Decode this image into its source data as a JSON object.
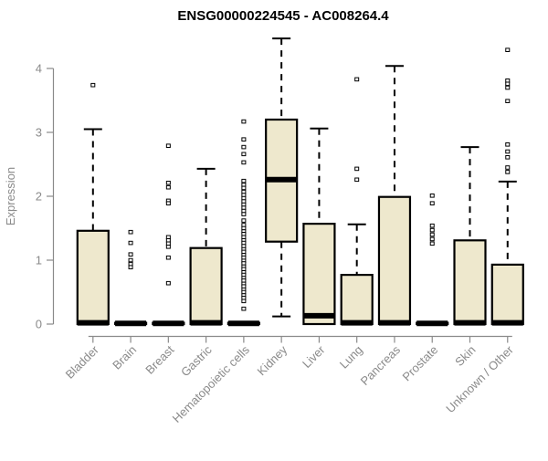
{
  "title": "ENSG00000224545 - AC008264.4",
  "colors": {
    "box_fill": "#EEE8CD",
    "box_border": "#000000",
    "axis": "#8a8a8a",
    "title_color": "#000000"
  },
  "chart_data": {
    "type": "boxplot",
    "title": "ENSG00000224545 - AC008264.4",
    "ylabel": "Expression",
    "xlabel": "",
    "ylim": [
      0,
      4.6
    ],
    "yticks": [
      0,
      1,
      2,
      3,
      4
    ],
    "grid": false,
    "legend": false,
    "categories": [
      "Bladder",
      "Brain",
      "Breast",
      "Gastric",
      "Hematopoietic cells",
      "Kidney",
      "Liver",
      "Lung",
      "Pancreas",
      "Prostate",
      "Skin",
      "Unknown / Other"
    ],
    "series": [
      {
        "name": "Bladder",
        "whisker_low": 0,
        "q1": 0,
        "median": 0.02,
        "q3": 1.46,
        "whisker_high": 3.05,
        "outliers": [
          3.74
        ]
      },
      {
        "name": "Brain",
        "whisker_low": 0,
        "q1": 0,
        "median": 0.01,
        "q3": 0.02,
        "whisker_high": 0.02,
        "outliers": [
          1.44,
          1.27,
          1.09,
          1.0,
          0.94,
          0.89
        ]
      },
      {
        "name": "Breast",
        "whisker_low": 0,
        "q1": 0,
        "median": 0.01,
        "q3": 0.02,
        "whisker_high": 0.02,
        "outliers": [
          2.79,
          2.21,
          2.14,
          1.93,
          1.89,
          1.36,
          1.31,
          1.26,
          1.21,
          1.04,
          0.64
        ]
      },
      {
        "name": "Gastric",
        "whisker_low": 0,
        "q1": 0,
        "median": 0.02,
        "q3": 1.19,
        "whisker_high": 2.43,
        "outliers": []
      },
      {
        "name": "Hematopoietic cells",
        "whisker_low": 0,
        "q1": 0,
        "median": 0.01,
        "q3": 0.02,
        "whisker_high": 0.02,
        "outliers": [
          3.17,
          2.89,
          2.77,
          2.66,
          2.53,
          2.24,
          2.18,
          2.13,
          2.07,
          2.02,
          1.97,
          1.92,
          1.87,
          1.82,
          1.77,
          1.72,
          1.62,
          1.55,
          1.5,
          1.45,
          1.41,
          1.36,
          1.31,
          1.27,
          1.22,
          1.17,
          1.13,
          1.08,
          1.04,
          0.99,
          0.95,
          0.9,
          0.86,
          0.81,
          0.77,
          0.72,
          0.68,
          0.63,
          0.59,
          0.54,
          0.5,
          0.45,
          0.41,
          0.36,
          0.24
        ]
      },
      {
        "name": "Kidney",
        "whisker_low": 0.12,
        "q1": 1.29,
        "median": 2.26,
        "q3": 3.2,
        "whisker_high": 4.47,
        "outliers": []
      },
      {
        "name": "Liver",
        "whisker_low": 0,
        "q1": 0,
        "median": 0.13,
        "q3": 1.57,
        "whisker_high": 3.06,
        "outliers": []
      },
      {
        "name": "Lung",
        "whisker_low": 0,
        "q1": 0,
        "median": 0.02,
        "q3": 0.77,
        "whisker_high": 1.56,
        "outliers": [
          3.83,
          2.43,
          2.26
        ]
      },
      {
        "name": "Pancreas",
        "whisker_low": 0,
        "q1": 0,
        "median": 0.02,
        "q3": 1.99,
        "whisker_high": 4.04,
        "outliers": []
      },
      {
        "name": "Prostate",
        "whisker_low": 0,
        "q1": 0,
        "median": 0.01,
        "q3": 0.02,
        "whisker_high": 0.02,
        "outliers": [
          2.01,
          1.89,
          1.54,
          1.47,
          1.4,
          1.33,
          1.26
        ]
      },
      {
        "name": "Skin",
        "whisker_low": 0,
        "q1": 0,
        "median": 0.02,
        "q3": 1.31,
        "whisker_high": 2.77,
        "outliers": []
      },
      {
        "name": "Unknown / Other",
        "whisker_low": 0,
        "q1": 0,
        "median": 0.02,
        "q3": 0.93,
        "whisker_high": 2.23,
        "outliers": [
          4.29,
          3.81,
          3.76,
          3.7,
          3.49,
          2.81,
          2.7,
          2.61,
          2.45,
          2.38
        ]
      }
    ]
  }
}
